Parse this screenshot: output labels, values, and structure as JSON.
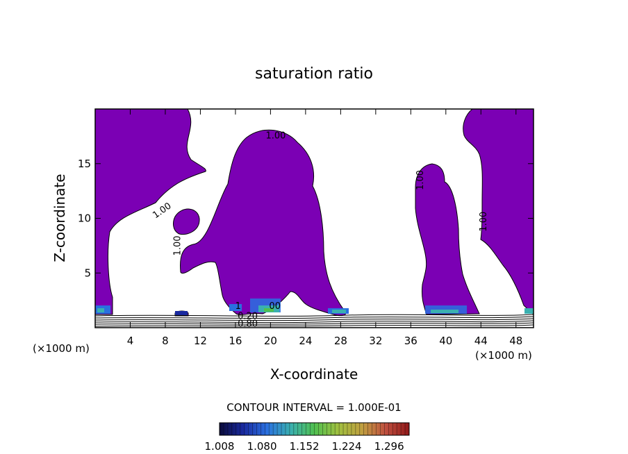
{
  "chart_data": {
    "type": "contour",
    "title": "saturation ratio",
    "xlabel": "X-coordinate",
    "ylabel": "Z-coordinate",
    "x_unit": "(×1000 m)",
    "z_unit": "(×1000 m)",
    "xlim": [
      0,
      50
    ],
    "ylim": [
      0,
      20
    ],
    "xticks": [
      4,
      8,
      12,
      16,
      20,
      24,
      28,
      32,
      36,
      40,
      44,
      48
    ],
    "yticks": [
      5,
      10,
      15
    ],
    "fill_color": "#7b00b4",
    "contour_labels": [
      {
        "text": "1.00",
        "x": 20.6,
        "z": 17.3,
        "angle": 0
      },
      {
        "text": "1.00",
        "x": 7.8,
        "z": 10.5,
        "angle": -35
      },
      {
        "text": "1.00",
        "x": 9.7,
        "z": 7.5,
        "angle": -90
      },
      {
        "text": "1.00",
        "x": 37.4,
        "z": 13.5,
        "angle": -90
      },
      {
        "text": "1.00",
        "x": 44.6,
        "z": 9.7,
        "angle": -90
      },
      {
        "text": "1",
        "x": 16.3,
        "z": 1.7,
        "angle": 0
      },
      {
        "text": "00",
        "x": 20.5,
        "z": 1.7,
        "angle": 0
      },
      {
        "text": "0.20",
        "x": 17.4,
        "z": 0.8,
        "angle": 0
      },
      {
        "text": "0.80",
        "x": 17.4,
        "z": 0.1,
        "angle": 0
      }
    ],
    "contour_interval_label": "CONTOUR INTERVAL = 1.000E-01",
    "colorbar": {
      "tick_labels": [
        "1.008",
        "1.080",
        "1.152",
        "1.224",
        "1.296"
      ],
      "range": [
        1.008,
        1.33
      ],
      "colors": [
        "#0a0a3a",
        "#1a2aa0",
        "#2a70e0",
        "#3ab0b0",
        "#50c050",
        "#a0c040",
        "#c0a040",
        "#c05040",
        "#901818"
      ]
    }
  }
}
